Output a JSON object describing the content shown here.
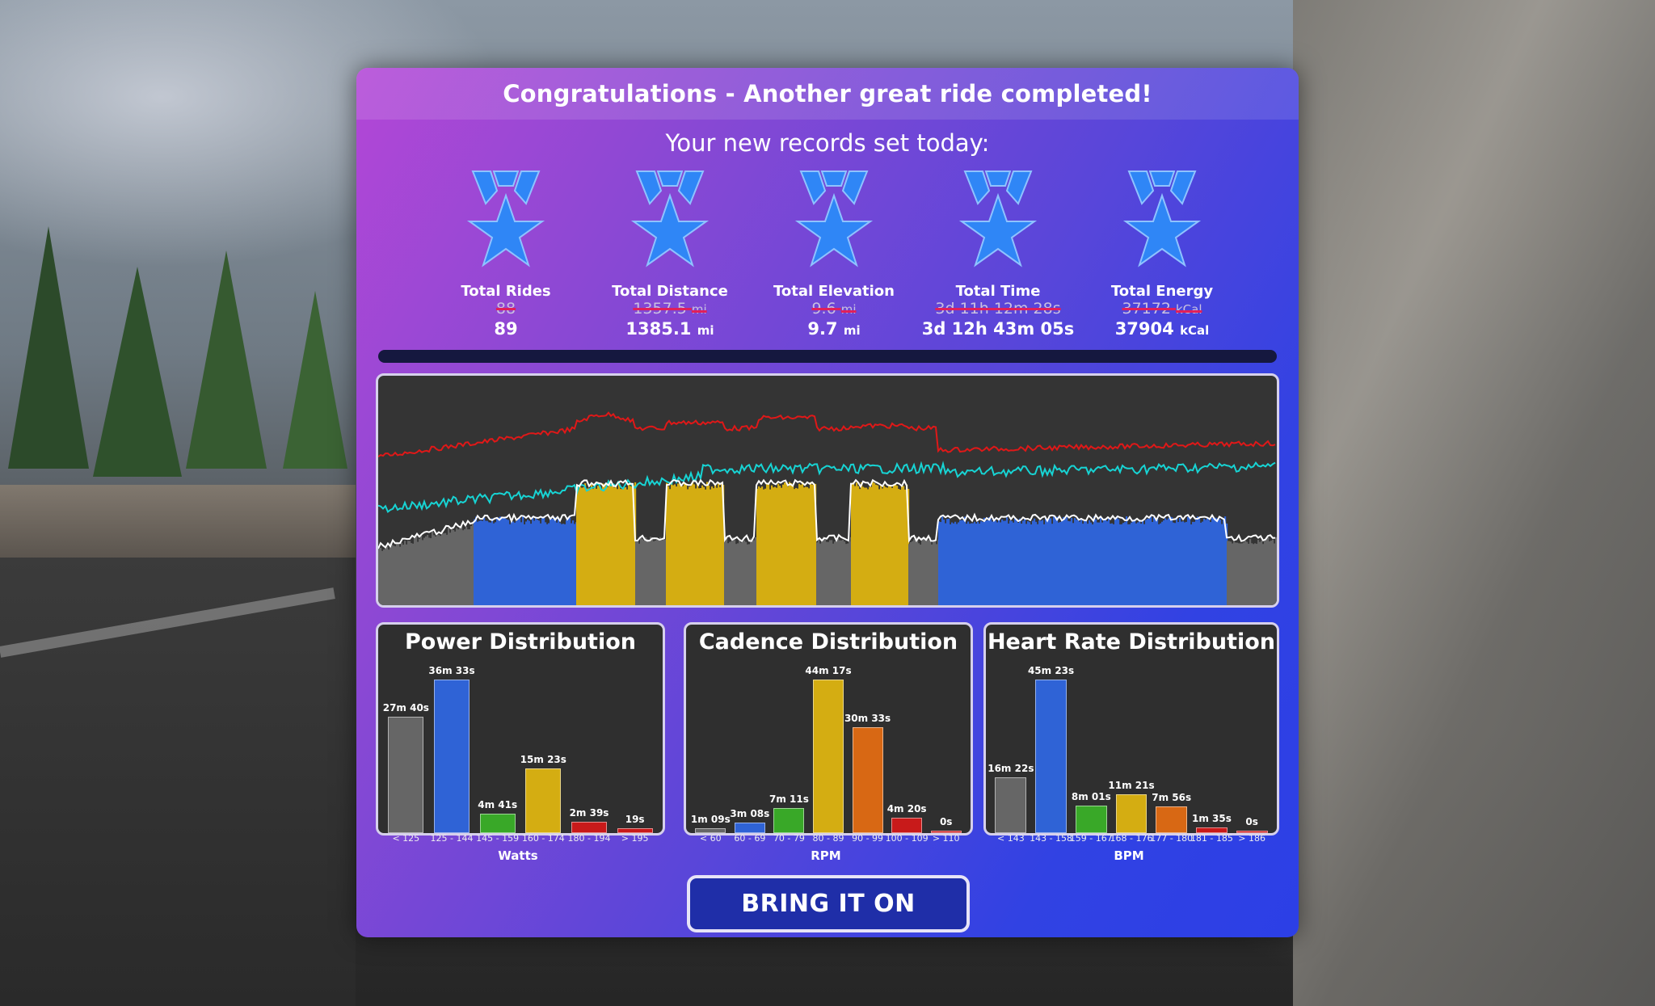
{
  "header": {
    "title": "Congratulations - Another great ride completed!"
  },
  "records": {
    "subtitle": "Your new records set today:",
    "items": [
      {
        "label": "Total Rides",
        "old": "88",
        "old_unit": "",
        "new": "89",
        "new_unit": ""
      },
      {
        "label": "Total Distance",
        "old": "1357.5",
        "old_unit": "mi",
        "new": "1385.1",
        "new_unit": "mi"
      },
      {
        "label": "Total Elevation",
        "old": "9.6",
        "old_unit": "mi",
        "new": "9.7",
        "new_unit": "mi"
      },
      {
        "label": "Total Time",
        "old": "3d 11h 12m 28s",
        "old_unit": "",
        "new": "3d 12h 43m 05s",
        "new_unit": ""
      },
      {
        "label": "Total Energy",
        "old": "37172",
        "old_unit": "kCal",
        "new": "37904",
        "new_unit": "kCal"
      }
    ]
  },
  "colors": {
    "zone1": "#666666",
    "zone2": "#2f63d6",
    "zone3": "#39a828",
    "zone4": "#d4ad12",
    "zone5": "#d86814",
    "zone6": "#c81a1a",
    "heart_rate_line": "#e01818",
    "cadence_line": "#17d4d4",
    "power_line": "#ffffff",
    "medal": "#2f86f6"
  },
  "chart_data": [
    {
      "type": "bar",
      "title": "Power Distribution",
      "xlabel": "Watts",
      "categories": [
        "< 125",
        "125 - 144",
        "145 - 159",
        "160 - 174",
        "180 - 194",
        "> 195"
      ],
      "value_labels": [
        "27m 40s",
        "36m 33s",
        "4m 41s",
        "15m 23s",
        "2m 39s",
        "19s"
      ],
      "values_seconds": [
        1660,
        2193,
        281,
        923,
        159,
        19
      ],
      "colors": [
        "#666666",
        "#2f63d6",
        "#39a828",
        "#d4ad12",
        "#c81a1a",
        "#c81a1a"
      ]
    },
    {
      "type": "bar",
      "title": "Cadence Distribution",
      "xlabel": "RPM",
      "categories": [
        "< 60",
        "60 - 69",
        "70 - 79",
        "80 - 89",
        "90 - 99",
        "100 - 109",
        "> 110"
      ],
      "value_labels": [
        "1m 09s",
        "3m 08s",
        "7m 11s",
        "44m 17s",
        "30m 33s",
        "4m 20s",
        "0s"
      ],
      "values_seconds": [
        69,
        188,
        431,
        2657,
        1833,
        260,
        0
      ],
      "colors": [
        "#666666",
        "#2f63d6",
        "#39a828",
        "#d4ad12",
        "#d86814",
        "#c81a1a",
        "#c81a1a"
      ]
    },
    {
      "type": "bar",
      "title": "Heart Rate Distribution",
      "xlabel": "BPM",
      "categories": [
        "< 143",
        "143 - 158",
        "159 - 167",
        "168 - 176",
        "177 - 180",
        "181 - 185",
        "> 186"
      ],
      "value_labels": [
        "16m 22s",
        "45m 23s",
        "8m 01s",
        "11m 21s",
        "7m 56s",
        "1m 35s",
        "0s"
      ],
      "values_seconds": [
        982,
        2723,
        481,
        681,
        476,
        95,
        0
      ],
      "colors": [
        "#666666",
        "#2f63d6",
        "#39a828",
        "#d4ad12",
        "#d86814",
        "#c81a1a",
        "#c81a1a"
      ]
    }
  ],
  "button": {
    "label": "BRING IT ON"
  }
}
